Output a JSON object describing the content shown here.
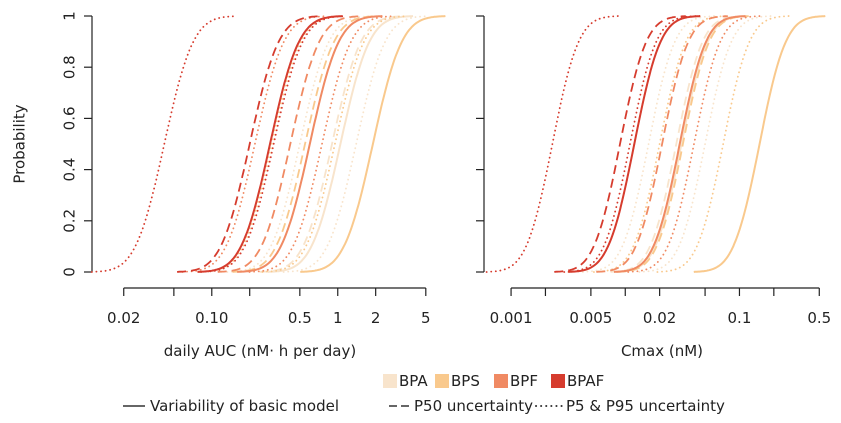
{
  "colors": {
    "BPA": "#f8e4cc",
    "BPS": "#f9c98d",
    "BPF": "#f08a63",
    "BPAF": "#d63c2e",
    "axis": "#222222"
  },
  "legend": {
    "substances": [
      "BPA",
      "BPS",
      "BPF",
      "BPAF"
    ],
    "line_types": [
      {
        "key": "solid",
        "label": "Variability of basic model"
      },
      {
        "key": "dashed",
        "label": "P50 uncertainty"
      },
      {
        "key": "dotted",
        "label": "P5 & P95 uncertainty"
      }
    ]
  },
  "chart_data": [
    {
      "type": "line",
      "panel": "left",
      "xlabel": "daily AUC (nM· h per day)",
      "ylabel": "Probability",
      "x_scale": "log",
      "xlim": [
        0.015,
        5.6
      ],
      "ylim": [
        0,
        1
      ],
      "xticks": [
        0.02,
        0.05,
        0.1,
        0.2,
        0.5,
        1,
        2,
        5
      ],
      "xtick_labels": [
        "0.02",
        "",
        "0.10",
        "",
        "0.5",
        "1",
        "2",
        "5"
      ],
      "yticks": [
        0,
        0.2,
        0.4,
        0.6,
        0.8,
        1
      ],
      "ytick_labels": [
        "0",
        "0.2",
        "0.4",
        "0.6",
        "0.8",
        "1"
      ],
      "series": [
        {
          "name": "BPA",
          "style": "solid",
          "median": 1.05,
          "spread": 0.18
        },
        {
          "name": "BPA",
          "style": "dashed",
          "median": 0.9,
          "spread": 0.18
        },
        {
          "name": "BPA",
          "style": "dotted",
          "median": 0.5,
          "spread": 0.18
        },
        {
          "name": "BPA",
          "style": "dotted",
          "median": 1.4,
          "spread": 0.18
        },
        {
          "name": "BPS",
          "style": "solid",
          "median": 1.9,
          "spread": 0.18
        },
        {
          "name": "BPS",
          "style": "dashed",
          "median": 0.55,
          "spread": 0.18
        },
        {
          "name": "BPS",
          "style": "dotted",
          "median": 0.3,
          "spread": 0.18
        },
        {
          "name": "BPS",
          "style": "dotted",
          "median": 0.95,
          "spread": 0.18
        },
        {
          "name": "BPF",
          "style": "solid",
          "median": 0.6,
          "spread": 0.18
        },
        {
          "name": "BPF",
          "style": "dashed",
          "median": 0.42,
          "spread": 0.18
        },
        {
          "name": "BPF",
          "style": "dotted",
          "median": 0.22,
          "spread": 0.18
        },
        {
          "name": "BPF",
          "style": "dotted",
          "median": 0.75,
          "spread": 0.18
        },
        {
          "name": "BPAF",
          "style": "solid",
          "median": 0.29,
          "spread": 0.18
        },
        {
          "name": "BPAF",
          "style": "dashed",
          "median": 0.2,
          "spread": 0.18
        },
        {
          "name": "BPAF",
          "style": "dotted",
          "median": 0.042,
          "spread": 0.18
        },
        {
          "name": "BPAF",
          "style": "dotted",
          "median": 0.31,
          "spread": 0.18
        }
      ]
    },
    {
      "type": "line",
      "panel": "right",
      "xlabel": "Cmax (nM)",
      "ylabel": "",
      "x_scale": "log",
      "xlim": [
        0.0008,
        0.55
      ],
      "ylim": [
        0,
        1
      ],
      "xticks": [
        0.001,
        0.002,
        0.005,
        0.01,
        0.02,
        0.05,
        0.1,
        0.2,
        0.5
      ],
      "xtick_labels": [
        "0.001",
        "",
        "0.005",
        "",
        "0.02",
        "",
        "0.1",
        "",
        "0.5"
      ],
      "yticks": [
        0,
        0.2,
        0.4,
        0.6,
        0.8,
        1
      ],
      "series": [
        {
          "name": "BPA",
          "style": "solid",
          "median": 0.031,
          "spread": 0.18
        },
        {
          "name": "BPA",
          "style": "dashed",
          "median": 0.028,
          "spread": 0.18
        },
        {
          "name": "BPA",
          "style": "dotted",
          "median": 0.016,
          "spread": 0.18
        },
        {
          "name": "BPA",
          "style": "dotted",
          "median": 0.05,
          "spread": 0.18
        },
        {
          "name": "BPS",
          "style": "solid",
          "median": 0.15,
          "spread": 0.18
        },
        {
          "name": "BPS",
          "style": "dashed",
          "median": 0.032,
          "spread": 0.18
        },
        {
          "name": "BPS",
          "style": "dotted",
          "median": 0.02,
          "spread": 0.18
        },
        {
          "name": "BPS",
          "style": "dotted",
          "median": 0.072,
          "spread": 0.18
        },
        {
          "name": "BPF",
          "style": "solid",
          "median": 0.03,
          "spread": 0.18
        },
        {
          "name": "BPF",
          "style": "dashed",
          "median": 0.021,
          "spread": 0.18
        },
        {
          "name": "BPF",
          "style": "dotted",
          "median": 0.012,
          "spread": 0.18
        },
        {
          "name": "BPF",
          "style": "dotted",
          "median": 0.04,
          "spread": 0.18
        },
        {
          "name": "BPAF",
          "style": "solid",
          "median": 0.012,
          "spread": 0.18
        },
        {
          "name": "BPAF",
          "style": "dashed",
          "median": 0.009,
          "spread": 0.18
        },
        {
          "name": "BPAF",
          "style": "dotted",
          "median": 0.0023,
          "spread": 0.18
        },
        {
          "name": "BPAF",
          "style": "dotted",
          "median": 0.011,
          "spread": 0.18
        }
      ]
    }
  ]
}
